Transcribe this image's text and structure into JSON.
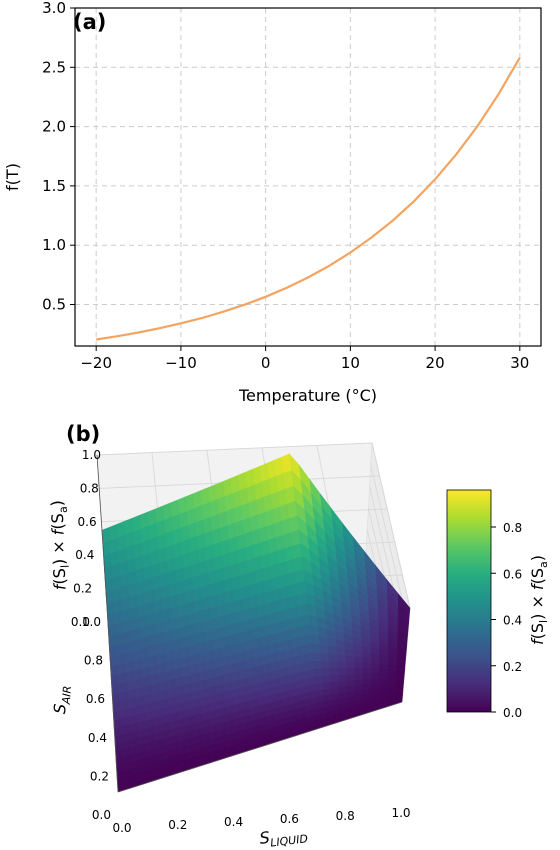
{
  "panel_a": {
    "label": "(a)",
    "xlabel": "Temperature (°C)",
    "ylabel": "f(T)"
  },
  "panel_b": {
    "label": "(b)",
    "xlabel": "S_LIQUID",
    "ylabel": "S_AIR",
    "zlabel": "f(S_l) × f(S_a)",
    "colorbar_label": "f(S_l) × f(S_a)"
  },
  "chart_data": [
    {
      "type": "line",
      "title": "",
      "xlabel": "Temperature (°C)",
      "ylabel": "f(T)",
      "xlim": [
        -22.5,
        32.5
      ],
      "ylim": [
        0.15,
        3.0
      ],
      "xticks": [
        -20,
        -10,
        0,
        10,
        20,
        30
      ],
      "xtick_labels": [
        "−20",
        "−10",
        "0",
        "10",
        "20",
        "30"
      ],
      "yticks": [
        0.5,
        1.0,
        1.5,
        2.0,
        2.5,
        3.0
      ],
      "ytick_labels": [
        "0.5",
        "1.0",
        "1.5",
        "2.0",
        "2.5",
        "3.0"
      ],
      "grid": true,
      "line_color": "#f4a460",
      "x": [
        -20,
        -17.5,
        -15,
        -12.5,
        -10,
        -7.5,
        -5,
        -2.5,
        0,
        2.5,
        5,
        7.5,
        10,
        12.5,
        15,
        17.5,
        20,
        22.5,
        25,
        27.5,
        30
      ],
      "y": [
        0.205,
        0.233,
        0.264,
        0.3,
        0.341,
        0.386,
        0.439,
        0.498,
        0.565,
        0.641,
        0.728,
        0.826,
        0.938,
        1.065,
        1.207,
        1.37,
        1.556,
        1.766,
        2.004,
        2.274,
        2.581
      ]
    },
    {
      "type": "surface",
      "title": "",
      "xlabel": "S_LIQUID",
      "ylabel": "S_AIR",
      "zlabel": "f(S_l) × f(S_a)",
      "xlim": [
        0.0,
        1.0
      ],
      "ylim": [
        0.0,
        1.0
      ],
      "zlim": [
        0.0,
        1.0
      ],
      "xtick_labels": [
        "0.0",
        "0.2",
        "0.4",
        "0.6",
        "0.8",
        "1.0"
      ],
      "ytick_labels": [
        "0.0",
        "0.2",
        "0.4",
        "0.6",
        "0.8",
        "1.0"
      ],
      "ztick_labels": [
        "0.0",
        "0.2",
        "0.4",
        "0.6",
        "0.8",
        "1.0"
      ],
      "colormap": "viridis",
      "colorbar_range": [
        0.0,
        0.96
      ],
      "colorbar_ticks": [
        "0.0",
        "0.2",
        "0.4",
        "0.6",
        "0.8"
      ],
      "corner_values": {
        "S_LIQUID=0,S_AIR=0": 0.0,
        "S_LIQUID=0,S_AIR=1": 0.55,
        "S_LIQUID=1,S_AIR=0": 0.0,
        "S_LIQUID=0.7,S_AIR=1": 0.96
      }
    }
  ]
}
